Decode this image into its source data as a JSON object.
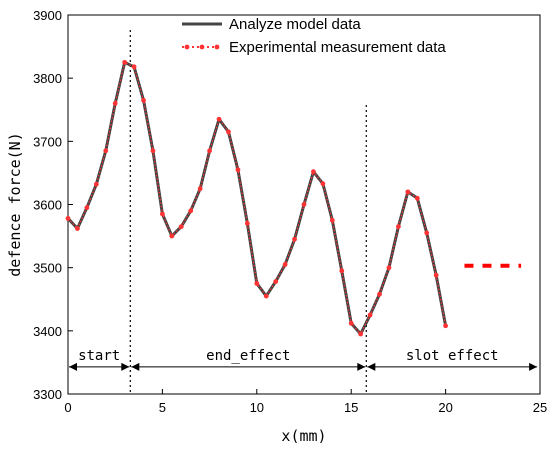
{
  "chart_data": {
    "type": "line",
    "xlabel": "x(mm)",
    "ylabel": "defence force(N)",
    "xlim": [
      0,
      25
    ],
    "ylim": [
      3300,
      3900
    ],
    "xticks": [
      0,
      5,
      10,
      15,
      20,
      25
    ],
    "yticks": [
      3300,
      3400,
      3500,
      3600,
      3700,
      3800,
      3900
    ],
    "legend_position": "top-right",
    "x": [
      0,
      0.5,
      1,
      1.5,
      2,
      2.5,
      3,
      3.5,
      4,
      4.5,
      5,
      5.5,
      6,
      6.5,
      7,
      7.5,
      8,
      8.5,
      9,
      9.5,
      10,
      10.5,
      11,
      11.5,
      12,
      12.5,
      13,
      13.5,
      14,
      14.5,
      15,
      15.5,
      16,
      16.5,
      17,
      17.5,
      18,
      18.5,
      19,
      19.5,
      20
    ],
    "series": [
      {
        "name": "Analyze model data",
        "color": "#444444",
        "values": [
          3578,
          3562,
          3595,
          3632,
          3685,
          3760,
          3825,
          3818,
          3765,
          3685,
          3585,
          3550,
          3565,
          3590,
          3625,
          3685,
          3735,
          3715,
          3655,
          3570,
          3475,
          3455,
          3478,
          3505,
          3545,
          3600,
          3652,
          3633,
          3575,
          3495,
          3412,
          3395,
          3425,
          3458,
          3500,
          3565,
          3620,
          3610,
          3555,
          3488,
          3408
        ]
      },
      {
        "name": "Experimental measurement data",
        "color": "#ff3333",
        "values": [
          3578,
          3562,
          3595,
          3632,
          3685,
          3760,
          3825,
          3818,
          3765,
          3685,
          3585,
          3550,
          3565,
          3590,
          3625,
          3685,
          3735,
          3715,
          3655,
          3570,
          3475,
          3455,
          3478,
          3505,
          3545,
          3600,
          3652,
          3633,
          3575,
          3495,
          3412,
          3395,
          3425,
          3458,
          3500,
          3565,
          3620,
          3610,
          3555,
          3488,
          3408
        ]
      }
    ],
    "extra_dashes": {
      "color": "#ff0000",
      "x": [
        21,
        24
      ],
      "y": 3503
    },
    "dividers": [
      3.3,
      15.8
    ],
    "regions": [
      {
        "label": "start",
        "from": 0,
        "to": 3.3
      },
      {
        "label": "end_effect",
        "from": 3.3,
        "to": 15.8
      },
      {
        "label": "slot effect",
        "from": 15.8,
        "to": 24.9
      }
    ],
    "region_arrow_y": 3343,
    "region_label_y": 3362
  }
}
